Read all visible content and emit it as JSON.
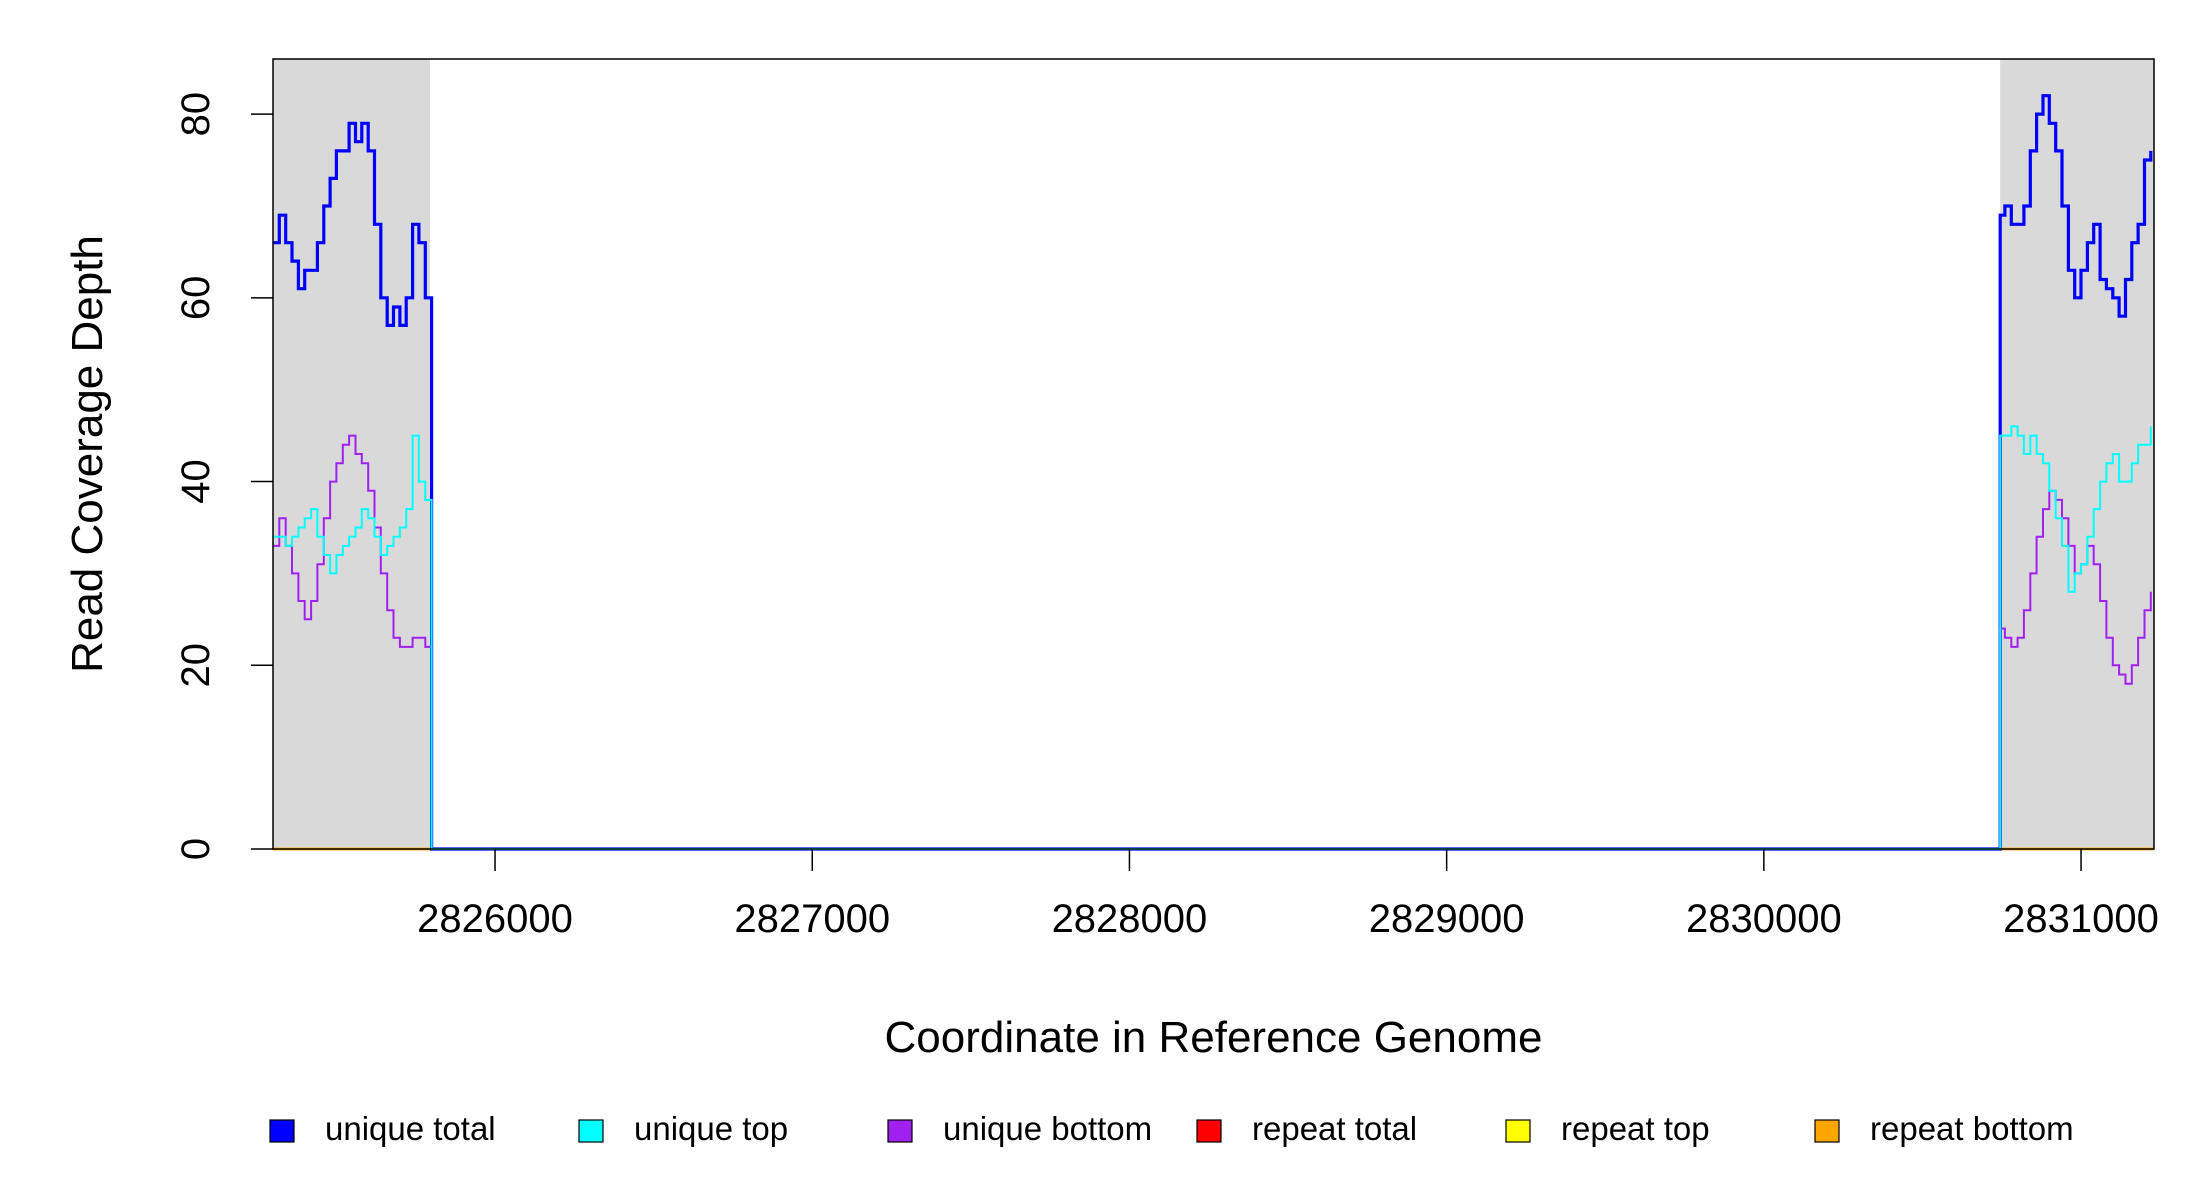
{
  "chart_data": {
    "type": "line",
    "title": "",
    "xlabel": "Coordinate in Reference Genome",
    "ylabel": "Read Coverage Depth",
    "xlim": [
      2825300,
      2831230
    ],
    "ylim": [
      0,
      86
    ],
    "x_ticks": [
      2826000,
      2827000,
      2828000,
      2829000,
      2830000,
      2831000
    ],
    "x_tick_labels": [
      "2826000",
      "2827000",
      "2828000",
      "2829000",
      "2830000",
      "2831000"
    ],
    "y_ticks": [
      0,
      20,
      40,
      60,
      80
    ],
    "y_tick_labels": [
      "0",
      "20",
      "40",
      "60",
      "80"
    ],
    "grid": false,
    "legend_position": "bottom",
    "shaded_regions": [
      {
        "x_start": 2825300,
        "x_end": 2825795
      },
      {
        "x_start": 2830745,
        "x_end": 2831230
      }
    ],
    "series": [
      {
        "name": "unique total",
        "color": "#0000ff",
        "x": [
          2825300,
          2825320,
          2825340,
          2825360,
          2825380,
          2825400,
          2825420,
          2825440,
          2825460,
          2825480,
          2825500,
          2825520,
          2825540,
          2825560,
          2825580,
          2825600,
          2825620,
          2825640,
          2825660,
          2825680,
          2825700,
          2825720,
          2825740,
          2825760,
          2825780,
          2825795,
          2825800,
          2830740,
          2830745,
          2830760,
          2830780,
          2830800,
          2830820,
          2830840,
          2830860,
          2830880,
          2830900,
          2830920,
          2830940,
          2830960,
          2830980,
          2831000,
          2831020,
          2831040,
          2831060,
          2831080,
          2831100,
          2831120,
          2831140,
          2831160,
          2831180,
          2831200,
          2831220
        ],
        "y": [
          66,
          69,
          66,
          64,
          61,
          63,
          63,
          66,
          70,
          73,
          76,
          76,
          79,
          77,
          79,
          76,
          68,
          60,
          57,
          59,
          57,
          60,
          68,
          66,
          60,
          60,
          0,
          0,
          69,
          70,
          68,
          68,
          70,
          76,
          80,
          82,
          79,
          76,
          70,
          63,
          60,
          63,
          66,
          68,
          62,
          61,
          60,
          58,
          62,
          66,
          68,
          75,
          76
        ]
      },
      {
        "name": "unique top",
        "color": "#00ffff",
        "x": [
          2825300,
          2825320,
          2825340,
          2825360,
          2825380,
          2825400,
          2825420,
          2825440,
          2825460,
          2825480,
          2825500,
          2825520,
          2825540,
          2825560,
          2825580,
          2825600,
          2825620,
          2825640,
          2825660,
          2825680,
          2825700,
          2825720,
          2825740,
          2825760,
          2825780,
          2825795,
          2825800,
          2830740,
          2830745,
          2830760,
          2830780,
          2830800,
          2830820,
          2830840,
          2830860,
          2830880,
          2830900,
          2830920,
          2830940,
          2830960,
          2830980,
          2831000,
          2831020,
          2831040,
          2831060,
          2831080,
          2831100,
          2831120,
          2831140,
          2831160,
          2831180,
          2831200,
          2831220
        ],
        "y": [
          34,
          34,
          33,
          34,
          35,
          36,
          37,
          34,
          32,
          30,
          32,
          33,
          34,
          35,
          37,
          36,
          34,
          32,
          33,
          34,
          35,
          37,
          45,
          40,
          38,
          38,
          0,
          0,
          45,
          45,
          46,
          45,
          43,
          45,
          43,
          42,
          39,
          36,
          33,
          28,
          30,
          31,
          34,
          37,
          40,
          42,
          43,
          40,
          40,
          42,
          44,
          44,
          46
        ]
      },
      {
        "name": "unique bottom",
        "color": "#a020f0",
        "x": [
          2825300,
          2825320,
          2825340,
          2825360,
          2825380,
          2825400,
          2825420,
          2825440,
          2825460,
          2825480,
          2825500,
          2825520,
          2825540,
          2825560,
          2825580,
          2825600,
          2825620,
          2825640,
          2825660,
          2825680,
          2825700,
          2825720,
          2825740,
          2825760,
          2825780,
          2825795,
          2825800,
          2830740,
          2830745,
          2830760,
          2830780,
          2830800,
          2830820,
          2830840,
          2830860,
          2830880,
          2830900,
          2830920,
          2830940,
          2830960,
          2830980,
          2831000,
          2831020,
          2831040,
          2831060,
          2831080,
          2831100,
          2831120,
          2831140,
          2831160,
          2831180,
          2831200,
          2831220
        ],
        "y": [
          33,
          36,
          33,
          30,
          27,
          25,
          27,
          31,
          36,
          40,
          42,
          44,
          45,
          43,
          42,
          39,
          35,
          30,
          26,
          23,
          22,
          22,
          23,
          23,
          22,
          22,
          0,
          0,
          24,
          23,
          22,
          23,
          26,
          30,
          34,
          37,
          39,
          38,
          36,
          33,
          30,
          31,
          33,
          31,
          27,
          23,
          20,
          19,
          18,
          20,
          23,
          26,
          28
        ]
      },
      {
        "name": "repeat total",
        "color": "#ff0000",
        "x": [
          2825300,
          2831230
        ],
        "y": [
          0,
          0
        ]
      },
      {
        "name": "repeat top",
        "color": "#ffff00",
        "x": [
          2825300,
          2831230
        ],
        "y": [
          0,
          0
        ]
      },
      {
        "name": "repeat bottom",
        "color": "#ffa500",
        "x": [
          2825300,
          2831230
        ],
        "y": [
          0,
          0
        ]
      }
    ]
  }
}
